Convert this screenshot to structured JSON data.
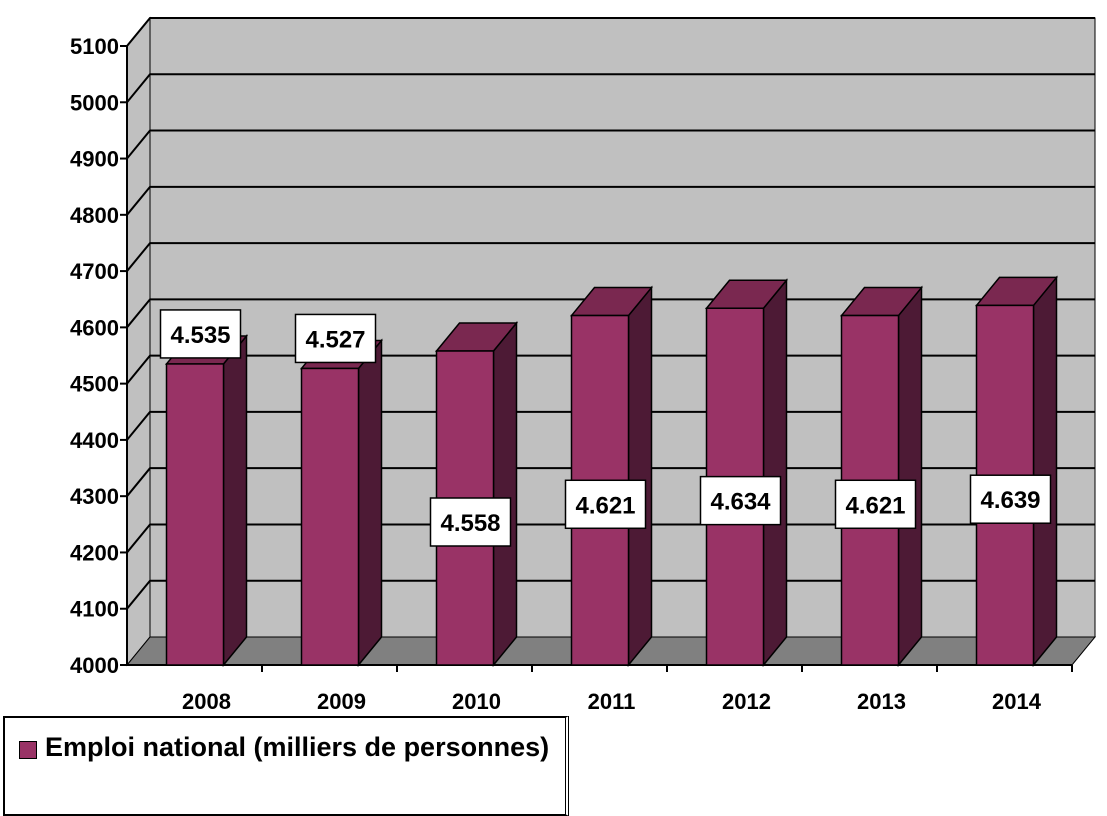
{
  "chart_data": {
    "type": "bar",
    "categories": [
      "2008",
      "2009",
      "2010",
      "2011",
      "2012",
      "2013",
      "2014"
    ],
    "series": [
      {
        "name": "Emploi national (milliers de personnes)",
        "values": [
          4535,
          4527,
          4558,
          4621,
          4634,
          4621,
          4639
        ],
        "data_labels": [
          "4.535",
          "4.527",
          "4.558",
          "4.621",
          "4.634",
          "4.621",
          "4.639"
        ]
      }
    ],
    "y_ticks": [
      "4000",
      "4100",
      "4200",
      "4300",
      "4400",
      "4500",
      "4600",
      "4700",
      "4800",
      "4900",
      "5000",
      "5100"
    ],
    "ylim": [
      4000,
      5100
    ],
    "grid": true,
    "three_d": true,
    "legend_position": "bottom-left",
    "colors": {
      "bar_front": "#993366",
      "bar_side": "#4d1a35",
      "bar_top": "#7a2850",
      "wall": "#c0c0c0",
      "floor": "#808080"
    }
  }
}
